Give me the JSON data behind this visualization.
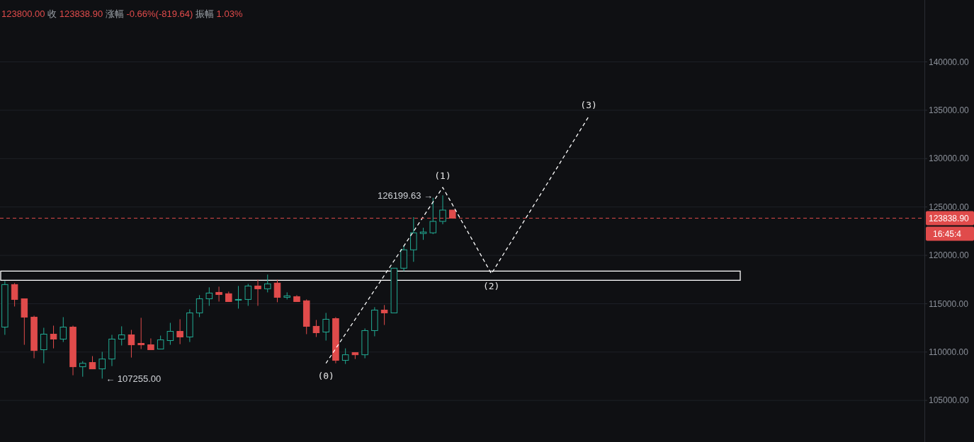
{
  "chart_data": {
    "type": "candlestick",
    "title": "123800.00 收 123838.90 涨幅 -0.66%(-819.64) 振幅 1.03%",
    "categories": [
      null,
      null,
      null,
      null,
      null,
      null,
      null,
      null,
      null,
      null,
      null,
      null,
      null,
      null,
      null,
      null,
      null,
      null,
      null,
      null,
      null,
      null,
      null,
      null,
      null,
      null,
      null,
      null,
      null,
      null,
      null,
      null,
      null,
      null,
      null,
      null,
      null,
      null,
      null,
      null,
      null,
      null,
      null,
      null,
      null,
      null,
      null,
      null,
      null,
      null,
      null,
      null,
      null,
      null,
      null,
      null,
      null,
      null,
      null,
      null,
      null,
      null,
      null,
      null,
      null,
      null,
      null,
      null,
      null,
      null,
      null,
      null,
      null,
      null,
      null,
      null,
      null,
      null,
      null,
      null,
      null,
      null,
      null,
      null,
      null,
      null,
      null,
      null,
      null,
      null,
      null,
      null,
      null,
      null,
      null
    ],
    "ohlc": [
      [
        112580,
        117350,
        111780,
        116980
      ],
      [
        116980,
        117130,
        114710,
        115440
      ],
      [
        115510,
        115510,
        110750,
        113610
      ],
      [
        113610,
        113760,
        109360,
        110160
      ],
      [
        110240,
        112510,
        108840,
        111850
      ],
      [
        111850,
        112730,
        110380,
        111340
      ],
      [
        111340,
        113610,
        111040,
        112580
      ],
      [
        112580,
        112730,
        107600,
        108480
      ],
      [
        108480,
        109060,
        107450,
        108840
      ],
      [
        108920,
        109580,
        108260,
        108260
      ],
      [
        108260,
        110020,
        107255,
        109280
      ],
      [
        109280,
        111780,
        108550,
        111340
      ],
      [
        111340,
        112660,
        110680,
        111780
      ],
      [
        111780,
        112290,
        109430,
        110750
      ],
      [
        110900,
        113540,
        110310,
        110750
      ],
      [
        110750,
        111410,
        110240,
        110240
      ],
      [
        110310,
        111700,
        110310,
        111260
      ],
      [
        111190,
        113020,
        110750,
        112140
      ],
      [
        112140,
        113390,
        110820,
        111560
      ],
      [
        111560,
        114420,
        111040,
        114050
      ],
      [
        114050,
        115880,
        113610,
        115510
      ],
      [
        115510,
        116690,
        114780,
        116100
      ],
      [
        116170,
        116760,
        115220,
        115950
      ],
      [
        116030,
        116250,
        115220,
        115220
      ],
      [
        115370,
        116830,
        114490,
        115440
      ],
      [
        115440,
        117050,
        114780,
        116830
      ],
      [
        116830,
        117490,
        114780,
        116540
      ],
      [
        116540,
        118010,
        116170,
        117050
      ],
      [
        117130,
        117490,
        115150,
        115660
      ],
      [
        115660,
        116170,
        115440,
        115810
      ],
      [
        115730,
        115880,
        115220,
        115220
      ],
      [
        115300,
        115440,
        111850,
        112660
      ],
      [
        112660,
        113320,
        111560,
        112000
      ],
      [
        112070,
        114050,
        111190,
        113390
      ],
      [
        113460,
        113610,
        108840,
        109140
      ],
      [
        109140,
        110380,
        108770,
        109720
      ],
      [
        109940,
        109940,
        109280,
        109720
      ],
      [
        109720,
        112440,
        109360,
        112220
      ],
      [
        112220,
        114640,
        111630,
        114340
      ],
      [
        114340,
        114860,
        112800,
        114050
      ],
      [
        114050,
        118670,
        114050,
        118670
      ],
      [
        118670,
        121010,
        118370,
        120570
      ],
      [
        120570,
        123950,
        119330,
        122330
      ],
      [
        122260,
        122850,
        121600,
        122410
      ],
      [
        122330,
        125950,
        122190,
        123510
      ],
      [
        123510,
        126199.63,
        123210,
        124680
      ],
      [
        124680,
        124680,
        123800,
        123838.9
      ],
      null,
      null,
      null,
      null,
      null,
      null,
      null,
      null,
      null,
      null,
      null,
      null,
      null,
      null,
      null,
      null,
      null,
      null,
      null,
      null,
      null,
      null,
      null,
      null,
      null,
      null,
      null,
      null,
      null,
      null,
      null,
      null,
      null,
      null,
      null,
      null,
      null,
      null,
      null,
      null,
      null,
      null,
      null,
      null,
      null,
      null,
      null,
      null
    ],
    "colors": [
      "#22ab94",
      "#e04b4b",
      "#e04b4b",
      "#e04b4b",
      "#22ab94",
      "#e04b4b",
      "#22ab94",
      "#e04b4b",
      "#22ab94",
      "#e04b4b",
      "#22ab94",
      "#22ab94",
      "#22ab94",
      "#e04b4b",
      "#e04b4b",
      "#e04b4b",
      "#22ab94",
      "#22ab94",
      "#e04b4b",
      "#22ab94",
      "#22ab94",
      "#22ab94",
      "#e04b4b",
      "#e04b4b",
      "#22ab94",
      "#22ab94",
      "#e04b4b",
      "#22ab94",
      "#e04b4b",
      "#22ab94",
      "#e04b4b",
      "#e04b4b",
      "#e04b4b",
      "#22ab94",
      "#e04b4b",
      "#22ab94",
      "#e04b4b",
      "#22ab94",
      "#22ab94",
      "#e04b4b",
      "#22ab94",
      "#22ab94",
      "#22ab94",
      "#22ab94",
      "#22ab94",
      "#22ab94",
      "#e04b4b",
      null,
      null,
      null,
      null,
      null,
      null,
      null,
      null,
      null,
      null,
      null,
      null,
      null,
      null,
      null,
      null,
      null,
      null,
      null,
      null,
      null,
      null,
      null,
      null,
      null,
      null,
      null,
      null,
      null,
      null,
      null,
      null,
      null,
      null,
      null,
      null,
      null,
      null,
      null,
      null,
      null,
      null,
      null,
      null,
      null,
      null,
      null,
      null
    ],
    "series": [
      {
        "type": "line",
        "color": "#ffffff",
        "line_style": "dashed",
        "values": [
          null,
          null,
          null,
          null,
          null,
          null,
          null,
          null,
          null,
          null,
          null,
          null,
          null,
          null,
          null,
          null,
          null,
          null,
          null,
          null,
          null,
          null,
          null,
          null,
          null,
          null,
          null,
          null,
          null,
          null,
          null,
          null,
          null,
          108840,
          null,
          null,
          null,
          null,
          null,
          null,
          null,
          null,
          null,
          null,
          null,
          127020,
          null,
          null,
          null,
          null,
          118100,
          null,
          null,
          null,
          null,
          null,
          null,
          null,
          null,
          null,
          134350,
          null,
          null,
          null,
          null,
          null,
          null,
          null,
          null,
          null,
          null,
          null,
          null,
          null,
          null,
          null,
          null,
          null,
          null,
          null,
          null,
          null,
          null,
          null,
          null,
          null,
          null,
          null,
          null,
          null,
          null,
          null,
          null,
          null,
          null
        ]
      }
    ],
    "ylim": [
      100700,
      146400
    ],
    "yticks": [
      {
        "value": 105000,
        "label": "105000.00"
      },
      {
        "value": 110000,
        "label": "110000.00"
      },
      {
        "value": 115000,
        "label": "115000.00"
      },
      {
        "value": 120000,
        "label": "120000.00"
      },
      {
        "value": 125000,
        "label": "125000.00"
      },
      {
        "value": 130000,
        "label": "130000.00"
      },
      {
        "value": 135000,
        "label": "135000.00"
      },
      {
        "value": 140000,
        "label": "140000.00"
      }
    ],
    "tick_labels": "y",
    "grid": "y",
    "ref_lines": [
      {
        "axis": "y",
        "value": 123838.9,
        "label": "123838.90",
        "color": "#e04b4b",
        "line_style": "dashed"
      }
    ],
    "bands": [
      {
        "axis": "y",
        "from": 117420,
        "to": 118370,
        "color": "#ffffff"
      }
    ],
    "annotations": [
      "← 107255.00",
      "126199.63 →",
      "16:45:4",
      "(0)",
      "(1)",
      "(2)",
      "(3)"
    ]
  }
}
